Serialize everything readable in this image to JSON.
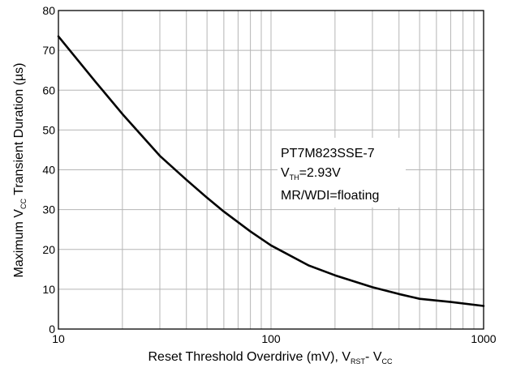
{
  "chart_data": {
    "type": "line",
    "x_scale": "log",
    "xlim": [
      10,
      1000
    ],
    "ylim": [
      0,
      80
    ],
    "x_ticks": [
      "10",
      "100",
      "1000"
    ],
    "y_ticks": [
      "0",
      "10",
      "20",
      "30",
      "40",
      "50",
      "60",
      "70",
      "80"
    ],
    "grid": true,
    "xlabel": {
      "main": "Reset Threshold Overdrive (mV), V",
      "sub1": "RST",
      "mid": "- V",
      "sub2": "CC"
    },
    "ylabel": {
      "main": "Maximum V",
      "sub": "CC",
      "rest": " Transient Duration (µs)"
    },
    "annotation": {
      "line1": "PT7M823SSE-7",
      "line2_main": "V",
      "line2_sub": "TH",
      "line2_rest": "=2.93V",
      "line3": "MR/WDI=floating"
    },
    "series": [
      {
        "color": "#000000",
        "x": [
          10,
          15,
          20,
          30,
          40,
          50,
          60,
          80,
          100,
          150,
          200,
          300,
          400,
          500,
          700,
          1000
        ],
        "y": [
          73.5,
          62,
          54,
          43.5,
          37.5,
          33,
          29.5,
          24.5,
          21,
          16,
          13.5,
          10.5,
          8.8,
          7.6,
          6.8,
          5.8
        ]
      }
    ]
  }
}
